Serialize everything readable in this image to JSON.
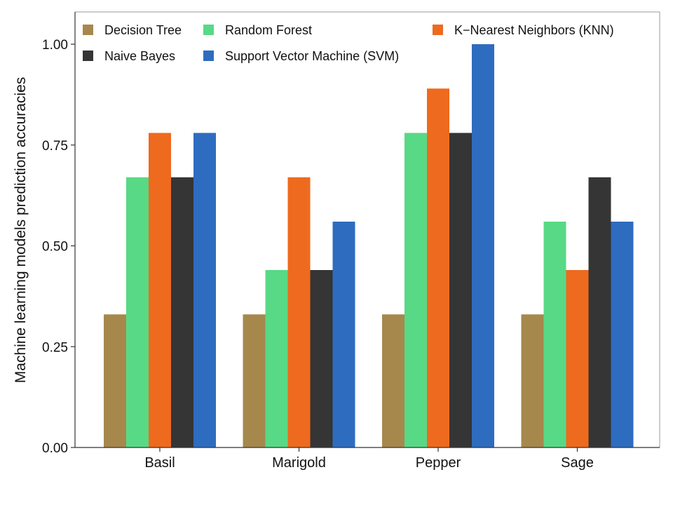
{
  "chart_data": {
    "type": "bar",
    "title": "",
    "xlabel": "",
    "ylabel": "Machine learning models prediction accuracies",
    "categories": [
      "Basil",
      "Marigold",
      "Pepper",
      "Sage"
    ],
    "series": [
      {
        "name": "Decision Tree",
        "color": "#a6884d",
        "values": [
          0.33,
          0.33,
          0.33,
          0.33
        ]
      },
      {
        "name": "Random Forest",
        "color": "#58d985",
        "values": [
          0.67,
          0.44,
          0.78,
          0.56
        ]
      },
      {
        "name": "K−Nearest Neighbors (KNN)",
        "color": "#ee6a1e",
        "values": [
          0.78,
          0.67,
          0.89,
          0.44
        ]
      },
      {
        "name": "Naive Bayes",
        "color": "#353535",
        "values": [
          0.67,
          0.44,
          0.78,
          0.67
        ]
      },
      {
        "name": "Support Vector Machine (SVM)",
        "color": "#2e6cc0",
        "values": [
          0.78,
          0.56,
          1.0,
          0.56
        ]
      }
    ],
    "ylim": [
      0,
      1.08
    ],
    "yticks": [
      "0.00",
      "0.25",
      "0.50",
      "0.75",
      "1.00"
    ],
    "ytick_values": [
      0,
      0.25,
      0.5,
      0.75,
      1.0
    ],
    "legend_position": "top",
    "grid": false
  }
}
